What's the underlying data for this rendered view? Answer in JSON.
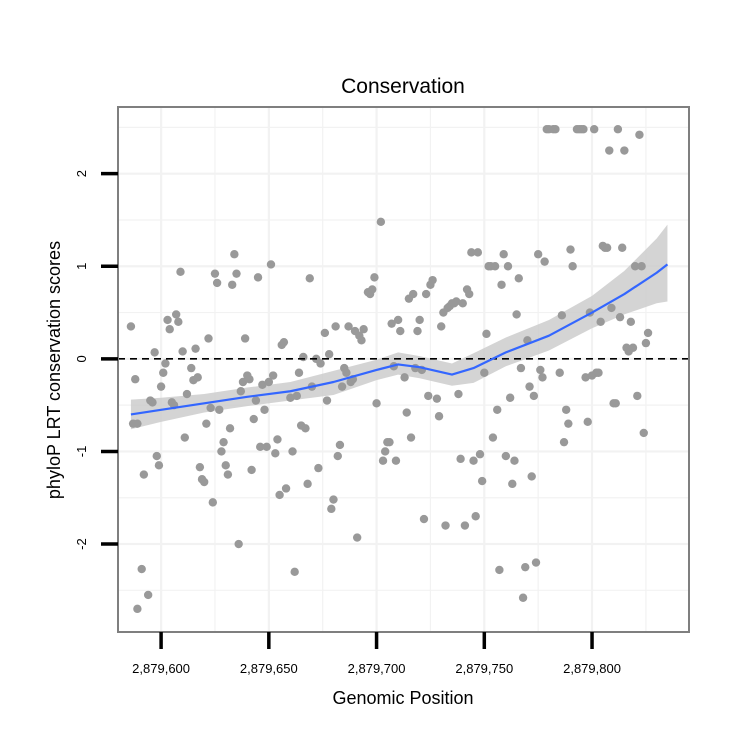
{
  "chart_data": {
    "type": "scatter",
    "title": "Conservation",
    "xlabel": "Genomic Position",
    "ylabel": "phyloP LRT conservation scores",
    "xlim": [
      2879580,
      2879845
    ],
    "ylim": [
      -2.95,
      2.72
    ],
    "x_ticks": [
      2879600,
      2879650,
      2879700,
      2879750,
      2879800
    ],
    "x_tick_labels": [
      "2,879,600",
      "2,879,650",
      "2,879,700",
      "2,879,750",
      "2,879,800"
    ],
    "y_ticks": [
      -2,
      -1,
      0,
      1,
      2
    ],
    "y_tick_labels": [
      "-2",
      "-1",
      "0",
      "1",
      "2"
    ],
    "reference_line": {
      "y": 0,
      "style": "dashed"
    },
    "points": [
      [
        2879586,
        0.35
      ],
      [
        2879587,
        -0.7
      ],
      [
        2879588,
        -0.22
      ],
      [
        2879589,
        -0.7
      ],
      [
        2879589,
        -2.7
      ],
      [
        2879591,
        -2.27
      ],
      [
        2879592,
        -1.25
      ],
      [
        2879594,
        -2.55
      ],
      [
        2879595,
        -0.45
      ],
      [
        2879596,
        -0.47
      ],
      [
        2879597,
        0.07
      ],
      [
        2879598,
        -1.05
      ],
      [
        2879599,
        -1.15
      ],
      [
        2879600,
        -0.3
      ],
      [
        2879601,
        -0.15
      ],
      [
        2879602,
        -0.05
      ],
      [
        2879603,
        0.42
      ],
      [
        2879604,
        0.32
      ],
      [
        2879605,
        -0.47
      ],
      [
        2879606,
        -0.5
      ],
      [
        2879607,
        0.48
      ],
      [
        2879608,
        0.4
      ],
      [
        2879609,
        0.94
      ],
      [
        2879610,
        0.08
      ],
      [
        2879611,
        -0.85
      ],
      [
        2879612,
        -0.38
      ],
      [
        2879614,
        -0.1
      ],
      [
        2879615,
        -0.23
      ],
      [
        2879616,
        0.11
      ],
      [
        2879617,
        -0.2
      ],
      [
        2879618,
        -1.17
      ],
      [
        2879619,
        -1.3
      ],
      [
        2879620,
        -1.33
      ],
      [
        2879621,
        -0.7
      ],
      [
        2879622,
        0.22
      ],
      [
        2879623,
        -0.53
      ],
      [
        2879624,
        -1.55
      ],
      [
        2879625,
        0.92
      ],
      [
        2879626,
        0.82
      ],
      [
        2879627,
        -0.55
      ],
      [
        2879628,
        -1.0
      ],
      [
        2879629,
        -0.9
      ],
      [
        2879630,
        -1.15
      ],
      [
        2879631,
        -1.25
      ],
      [
        2879632,
        -0.75
      ],
      [
        2879633,
        0.8
      ],
      [
        2879634,
        1.13
      ],
      [
        2879635,
        0.92
      ],
      [
        2879636,
        -2.0
      ],
      [
        2879637,
        -0.35
      ],
      [
        2879638,
        -0.25
      ],
      [
        2879639,
        0.22
      ],
      [
        2879640,
        -0.18
      ],
      [
        2879641,
        -0.22
      ],
      [
        2879642,
        -1.2
      ],
      [
        2879643,
        -0.65
      ],
      [
        2879644,
        -0.45
      ],
      [
        2879645,
        0.88
      ],
      [
        2879646,
        -0.95
      ],
      [
        2879647,
        -0.28
      ],
      [
        2879648,
        -0.55
      ],
      [
        2879649,
        -0.95
      ],
      [
        2879650,
        -0.25
      ],
      [
        2879651,
        1.02
      ],
      [
        2879652,
        -0.18
      ],
      [
        2879653,
        -1.02
      ],
      [
        2879654,
        -0.87
      ],
      [
        2879655,
        -1.47
      ],
      [
        2879656,
        0.15
      ],
      [
        2879657,
        0.18
      ],
      [
        2879658,
        -1.4
      ],
      [
        2879660,
        -0.42
      ],
      [
        2879661,
        -1.0
      ],
      [
        2879662,
        -2.3
      ],
      [
        2879663,
        -0.4
      ],
      [
        2879664,
        -0.15
      ],
      [
        2879665,
        -0.72
      ],
      [
        2879666,
        0.02
      ],
      [
        2879667,
        -0.75
      ],
      [
        2879668,
        -1.35
      ],
      [
        2879669,
        0.87
      ],
      [
        2879670,
        -0.3
      ],
      [
        2879672,
        0.0
      ],
      [
        2879673,
        -1.18
      ],
      [
        2879674,
        -0.05
      ],
      [
        2879676,
        0.28
      ],
      [
        2879677,
        -0.45
      ],
      [
        2879678,
        0.05
      ],
      [
        2879679,
        -1.62
      ],
      [
        2879680,
        -1.52
      ],
      [
        2879681,
        0.35
      ],
      [
        2879682,
        -1.05
      ],
      [
        2879683,
        -0.93
      ],
      [
        2879684,
        -0.3
      ],
      [
        2879685,
        -0.1
      ],
      [
        2879686,
        -0.15
      ],
      [
        2879687,
        0.35
      ],
      [
        2879688,
        -0.25
      ],
      [
        2879689,
        -0.22
      ],
      [
        2879690,
        0.3
      ],
      [
        2879691,
        -1.93
      ],
      [
        2879692,
        0.25
      ],
      [
        2879693,
        0.2
      ],
      [
        2879694,
        0.32
      ],
      [
        2879696,
        0.72
      ],
      [
        2879697,
        0.7
      ],
      [
        2879698,
        0.75
      ],
      [
        2879699,
        0.88
      ],
      [
        2879700,
        -0.48
      ],
      [
        2879702,
        1.48
      ],
      [
        2879703,
        -1.1
      ],
      [
        2879704,
        -1.0
      ],
      [
        2879705,
        -0.9
      ],
      [
        2879706,
        -0.9
      ],
      [
        2879707,
        0.38
      ],
      [
        2879708,
        -0.08
      ],
      [
        2879709,
        -1.1
      ],
      [
        2879710,
        0.42
      ],
      [
        2879711,
        0.3
      ],
      [
        2879713,
        -0.2
      ],
      [
        2879714,
        -0.58
      ],
      [
        2879715,
        0.65
      ],
      [
        2879716,
        -0.85
      ],
      [
        2879717,
        0.7
      ],
      [
        2879718,
        -0.1
      ],
      [
        2879719,
        0.3
      ],
      [
        2879720,
        0.42
      ],
      [
        2879721,
        -0.12
      ],
      [
        2879722,
        -1.73
      ],
      [
        2879723,
        0.7
      ],
      [
        2879724,
        -0.4
      ],
      [
        2879725,
        0.8
      ],
      [
        2879726,
        0.85
      ],
      [
        2879728,
        -0.43
      ],
      [
        2879729,
        -0.62
      ],
      [
        2879730,
        0.35
      ],
      [
        2879731,
        0.5
      ],
      [
        2879732,
        -1.8
      ],
      [
        2879733,
        0.55
      ],
      [
        2879734,
        0.57
      ],
      [
        2879735,
        0.6
      ],
      [
        2879736,
        0.6
      ],
      [
        2879737,
        0.62
      ],
      [
        2879738,
        -0.38
      ],
      [
        2879739,
        -1.08
      ],
      [
        2879740,
        0.6
      ],
      [
        2879741,
        -1.8
      ],
      [
        2879742,
        0.75
      ],
      [
        2879743,
        0.7
      ],
      [
        2879744,
        1.15
      ],
      [
        2879745,
        -1.1
      ],
      [
        2879746,
        -1.7
      ],
      [
        2879747,
        1.15
      ],
      [
        2879748,
        -1.03
      ],
      [
        2879749,
        -1.32
      ],
      [
        2879750,
        -0.15
      ],
      [
        2879751,
        0.27
      ],
      [
        2879752,
        1.0
      ],
      [
        2879753,
        1.0
      ],
      [
        2879754,
        -0.85
      ],
      [
        2879755,
        1.0
      ],
      [
        2879756,
        -0.55
      ],
      [
        2879757,
        -2.28
      ],
      [
        2879758,
        0.8
      ],
      [
        2879759,
        1.13
      ],
      [
        2879760,
        -1.05
      ],
      [
        2879761,
        1.0
      ],
      [
        2879762,
        -0.42
      ],
      [
        2879763,
        -1.35
      ],
      [
        2879764,
        -1.1
      ],
      [
        2879765,
        0.48
      ],
      [
        2879766,
        0.87
      ],
      [
        2879767,
        -0.1
      ],
      [
        2879768,
        -2.58
      ],
      [
        2879769,
        -2.25
      ],
      [
        2879770,
        0.2
      ],
      [
        2879771,
        -0.3
      ],
      [
        2879772,
        -1.27
      ],
      [
        2879773,
        -0.4
      ],
      [
        2879774,
        -2.2
      ],
      [
        2879775,
        1.13
      ],
      [
        2879776,
        -0.12
      ],
      [
        2879777,
        -0.2
      ],
      [
        2879778,
        1.05
      ],
      [
        2879779,
        2.48
      ],
      [
        2879780,
        2.48
      ],
      [
        2879782,
        2.48
      ],
      [
        2879783,
        2.48
      ],
      [
        2879785,
        -0.15
      ],
      [
        2879786,
        0.47
      ],
      [
        2879787,
        -0.9
      ],
      [
        2879788,
        -0.55
      ],
      [
        2879789,
        -0.7
      ],
      [
        2879790,
        1.18
      ],
      [
        2879791,
        1.0
      ],
      [
        2879793,
        2.48
      ],
      [
        2879794,
        2.48
      ],
      [
        2879795,
        2.48
      ],
      [
        2879796,
        2.48
      ],
      [
        2879797,
        -0.2
      ],
      [
        2879798,
        -0.68
      ],
      [
        2879799,
        0.5
      ],
      [
        2879800,
        -0.18
      ],
      [
        2879801,
        2.48
      ],
      [
        2879802,
        -0.15
      ],
      [
        2879803,
        -0.15
      ],
      [
        2879804,
        0.4
      ],
      [
        2879805,
        1.22
      ],
      [
        2879806,
        1.2
      ],
      [
        2879807,
        1.2
      ],
      [
        2879808,
        2.25
      ],
      [
        2879809,
        0.55
      ],
      [
        2879810,
        -0.48
      ],
      [
        2879811,
        -0.48
      ],
      [
        2879812,
        2.48
      ],
      [
        2879813,
        0.45
      ],
      [
        2879814,
        1.2
      ],
      [
        2879815,
        2.25
      ],
      [
        2879816,
        0.12
      ],
      [
        2879817,
        0.08
      ],
      [
        2879818,
        0.4
      ],
      [
        2879819,
        0.12
      ],
      [
        2879820,
        1.0
      ],
      [
        2879821,
        -0.4
      ],
      [
        2879822,
        2.42
      ],
      [
        2879823,
        1.0
      ],
      [
        2879824,
        -0.8
      ],
      [
        2879825,
        0.17
      ],
      [
        2879826,
        0.28
      ]
    ],
    "smooth": {
      "method": "loess",
      "color": "#3366ff",
      "band_color": "#cccccc",
      "x": [
        2879586,
        2879600,
        2879620,
        2879640,
        2879660,
        2879680,
        2879700,
        2879710,
        2879720,
        2879735,
        2879745,
        2879760,
        2879780,
        2879800,
        2879815,
        2879830,
        2879835
      ],
      "y": [
        -0.6,
        -0.55,
        -0.48,
        -0.41,
        -0.35,
        -0.25,
        -0.12,
        -0.06,
        -0.09,
        -0.17,
        -0.1,
        0.07,
        0.25,
        0.5,
        0.7,
        0.93,
        1.02
      ],
      "lower": [
        -0.76,
        -0.68,
        -0.58,
        -0.51,
        -0.45,
        -0.39,
        -0.23,
        -0.17,
        -0.21,
        -0.29,
        -0.26,
        -0.08,
        0.09,
        0.33,
        0.48,
        0.6,
        0.62
      ],
      "upper": [
        -0.44,
        -0.42,
        -0.38,
        -0.31,
        -0.25,
        -0.13,
        -0.01,
        0.07,
        0.03,
        -0.05,
        0.06,
        0.23,
        0.42,
        0.68,
        0.95,
        1.3,
        1.45
      ]
    },
    "colors": {
      "points": "#999999",
      "grid": "#f2f2f2",
      "border": "#7f7f7f",
      "reference": "#000000"
    }
  }
}
